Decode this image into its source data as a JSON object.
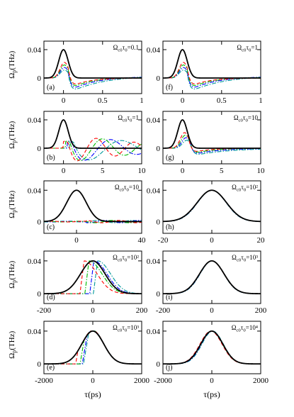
{
  "figure": {
    "y_axis_label": "Ω_p(THz)",
    "x_axis_label": "τ(ps)",
    "series_colors": [
      "#000000",
      "#ff0000",
      "#00bb00",
      "#0000ff",
      "#009999"
    ],
    "series_styles": [
      "solid",
      "dashed",
      "dash-dot",
      "dash-dot",
      "dash-dot"
    ]
  },
  "chart_data": [
    {
      "id": "a",
      "type": "line",
      "panel_label": "(a)",
      "annotation": "Ω_c0τ_0=0.1",
      "xlim": [
        -0.25,
        1.0
      ],
      "ylim": [
        -0.022,
        0.052
      ],
      "xticks": [
        0,
        0.5,
        1
      ],
      "xtick_labels": [
        "0",
        "0.5",
        "1"
      ],
      "yticks": [
        0,
        0.04
      ],
      "ytick_labels": [
        "0",
        "0.04"
      ],
      "input_pulse": {
        "amplitude": 0.04,
        "center": 0.0,
        "width": 0.06
      },
      "response": {
        "profile": "fast",
        "delay": 0.0,
        "depth": 0.015,
        "tail": 0.03
      }
    },
    {
      "id": "f",
      "type": "line",
      "panel_label": "(f)",
      "annotation": "Ω_c0τ_0=1",
      "xlim": [
        -0.25,
        1.0
      ],
      "ylim": [
        -0.022,
        0.052
      ],
      "xticks": [
        0,
        0.5,
        1
      ],
      "xtick_labels": [
        "0",
        "0.5",
        "1"
      ],
      "yticks": [
        0,
        0.04
      ],
      "ytick_labels": [
        "0",
        "0.04"
      ],
      "input_pulse": {
        "amplitude": 0.04,
        "center": 0.0,
        "width": 0.06
      },
      "response": {
        "profile": "fast",
        "delay": 0.0,
        "depth": 0.015,
        "tail": 0.03
      }
    },
    {
      "id": "b",
      "type": "line",
      "panel_label": "(b)",
      "annotation": "Ω_c0τ_0=1",
      "xlim": [
        -2.5,
        10
      ],
      "ylim": [
        -0.022,
        0.052
      ],
      "xticks": [
        0,
        5,
        10
      ],
      "xtick_labels": [
        "0",
        "5",
        "10"
      ],
      "yticks": [
        0,
        0.04
      ],
      "ytick_labels": [
        "0",
        "0.04"
      ],
      "input_pulse": {
        "amplitude": 0.04,
        "center": 0.0,
        "width": 0.6
      },
      "response": {
        "profile": "oscillating",
        "delay": 0.6,
        "depth": 0.02,
        "tail": 0.0
      }
    },
    {
      "id": "g",
      "type": "line",
      "panel_label": "(g)",
      "annotation": "Ω_c0τ_0=10",
      "xlim": [
        -2.5,
        10
      ],
      "ylim": [
        -0.022,
        0.052
      ],
      "xticks": [
        0,
        5,
        10
      ],
      "xtick_labels": [
        "0",
        "5",
        "10"
      ],
      "yticks": [
        0,
        0.04
      ],
      "ytick_labels": [
        "0",
        "0.04"
      ],
      "input_pulse": {
        "amplitude": 0.04,
        "center": 0.0,
        "width": 0.6
      },
      "response": {
        "profile": "fast",
        "delay": 0.3,
        "depth": 0.008,
        "tail": 0.0
      }
    },
    {
      "id": "c",
      "type": "line",
      "panel_label": "(c)",
      "annotation": "Ω_c0τ_0=10",
      "xlim": [
        -20,
        40
      ],
      "ylim": [
        -0.015,
        0.052
      ],
      "xticks": [
        0,
        40
      ],
      "xtick_labels": [
        "0",
        "40"
      ],
      "yticks": [
        0,
        0.04
      ],
      "ytick_labels": [
        "0",
        "0.04"
      ],
      "input_pulse": {
        "amplitude": 0.04,
        "center": 0.0,
        "width": 6.0
      },
      "response": {
        "profile": "flat",
        "delay": 0.0,
        "depth": 0.0015,
        "tail": 0.0
      }
    },
    {
      "id": "h",
      "type": "line",
      "panel_label": "(h)",
      "annotation": "Ω_c0τ_0=10²",
      "xlim": [
        -20,
        20
      ],
      "ylim": [
        -0.015,
        0.052
      ],
      "xticks": [
        -20,
        0,
        20
      ],
      "xtick_labels": [
        "-20",
        "0",
        "20"
      ],
      "yticks": [
        0,
        0.04
      ],
      "ytick_labels": [
        "0",
        "0.04"
      ],
      "input_pulse": {
        "amplitude": 0.04,
        "center": 0.0,
        "width": 6.0
      },
      "response": {
        "profile": "overlap",
        "delay": 0.2,
        "depth": 0.0,
        "tail": 0.0
      }
    },
    {
      "id": "d",
      "type": "line",
      "panel_label": "(d)",
      "annotation": "Ω_c0τ_0=10²",
      "xlim": [
        -200,
        200
      ],
      "ylim": [
        -0.012,
        0.052
      ],
      "xticks": [
        -200,
        0,
        200
      ],
      "xtick_labels": [
        "-200",
        "0",
        "200"
      ],
      "yticks": [
        0,
        0.04
      ],
      "ytick_labels": [
        "0",
        "0.04"
      ],
      "input_pulse": {
        "amplitude": 0.04,
        "center": 0.0,
        "width": 50.0
      },
      "response": {
        "profile": "shifted",
        "delay": 0.0,
        "depth": 0.0,
        "tail": 0.0
      }
    },
    {
      "id": "i",
      "type": "line",
      "panel_label": "(i)",
      "annotation": "Ω_c0τ_0=10³",
      "xlim": [
        -200,
        200
      ],
      "ylim": [
        -0.012,
        0.052
      ],
      "xticks": [
        -200,
        0,
        200
      ],
      "xtick_labels": [
        "-200",
        "0",
        "200"
      ],
      "yticks": [
        0,
        0.04
      ],
      "ytick_labels": [
        "0",
        "0.04"
      ],
      "input_pulse": {
        "amplitude": 0.04,
        "center": 0.0,
        "width": 50.0
      },
      "response": {
        "profile": "overlap",
        "delay": 1.0,
        "depth": 0.0,
        "tail": 0.0
      }
    },
    {
      "id": "e",
      "type": "line",
      "panel_label": "(e)",
      "annotation": "Ω_c0τ_0=10³",
      "xlim": [
        -2000,
        2000
      ],
      "ylim": [
        -0.012,
        0.052
      ],
      "xticks": [
        -2000,
        0,
        2000
      ],
      "xtick_labels": [
        "-2000",
        "0",
        "2000"
      ],
      "yticks": [
        0,
        0.04
      ],
      "ytick_labels": [
        "0",
        "0.04"
      ],
      "input_pulse": {
        "amplitude": 0.04,
        "center": 0.0,
        "width": 450.0
      },
      "response": {
        "profile": "steep",
        "delay": 0.0,
        "depth": 0.0,
        "tail": 0.0
      }
    },
    {
      "id": "j",
      "type": "line",
      "panel_label": "(j)",
      "annotation": "Ω_c0τ_0=10⁴",
      "xlim": [
        -2000,
        2000
      ],
      "ylim": [
        -0.012,
        0.052
      ],
      "xticks": [
        -2000,
        0,
        2000
      ],
      "xtick_labels": [
        "-2000",
        "0",
        "2000"
      ],
      "yticks": [
        0,
        0.04
      ],
      "ytick_labels": [
        "0",
        "0.04"
      ],
      "input_pulse": {
        "amplitude": 0.04,
        "center": 0.0,
        "width": 450.0
      },
      "response": {
        "profile": "overlap",
        "delay": 5.0,
        "depth": 0.0,
        "tail": 0.0
      }
    }
  ]
}
